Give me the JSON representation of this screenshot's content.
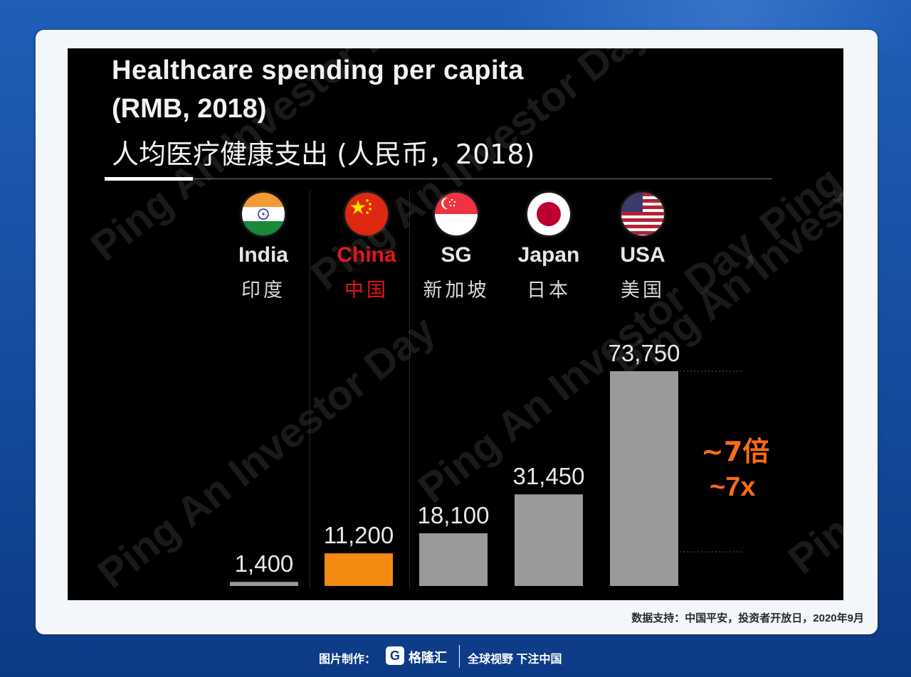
{
  "slide": {
    "title_en": "Healthcare spending per capita",
    "title_unit": "(RMB, 2018)",
    "title_cn": "人均医疗健康支出 (人民币，2018)",
    "watermark": "Ping An Investor Day"
  },
  "countries": [
    {
      "en": "India",
      "cn": "印度",
      "flag": "india-flag"
    },
    {
      "en": "China",
      "cn": "中国",
      "flag": "china-flag"
    },
    {
      "en": "SG",
      "cn": "新加坡",
      "flag": "singapore-flag"
    },
    {
      "en": "Japan",
      "cn": "日本",
      "flag": "japan-flag"
    },
    {
      "en": "USA",
      "cn": "美国",
      "flag": "usa-flag"
    }
  ],
  "chart_data": {
    "type": "bar",
    "title": "Healthcare spending per capita (RMB, 2018)",
    "categories": [
      "India",
      "China",
      "SG",
      "Japan",
      "USA"
    ],
    "values": [
      1400,
      11200,
      18100,
      31450,
      73750
    ],
    "value_labels": [
      "1,400",
      "11,200",
      "18,100",
      "31,450",
      "73,750"
    ],
    "colors": [
      "#9a9a9a",
      "#f28a12",
      "#9a9a9a",
      "#9a9a9a",
      "#9a9a9a"
    ],
    "ylim": [
      0,
      73750
    ],
    "grid": false,
    "annotation": {
      "cn": "~7倍",
      "en": "~7x",
      "color": "#ff6a1a"
    }
  },
  "source_text": "数据支持：中国平安，投资者开放日，2020年9月",
  "footer": {
    "made_by": "图片制作：",
    "brand_icon": "G",
    "brand": "格隆汇",
    "slogan": "全球视野 下注中国"
  }
}
